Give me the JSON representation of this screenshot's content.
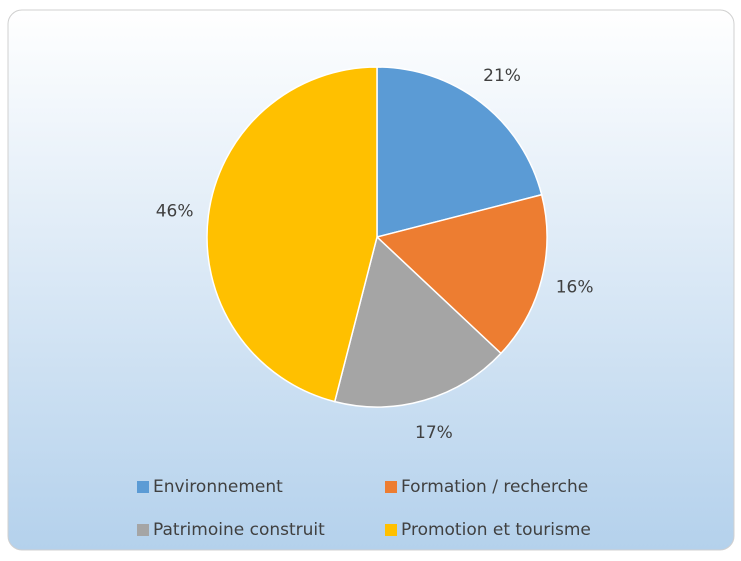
{
  "chart_data": {
    "type": "pie",
    "categories": [
      "Environnement",
      "Formation / recherche",
      "Patrimoine construit",
      "Promotion et tourisme"
    ],
    "values": [
      21,
      16,
      17,
      46
    ],
    "value_labels": [
      "21%",
      "16%",
      "17%",
      "46%"
    ],
    "colors": [
      "#5b9bd5",
      "#ed7d31",
      "#a5a5a5",
      "#ffc000"
    ],
    "legend": "bottom"
  }
}
